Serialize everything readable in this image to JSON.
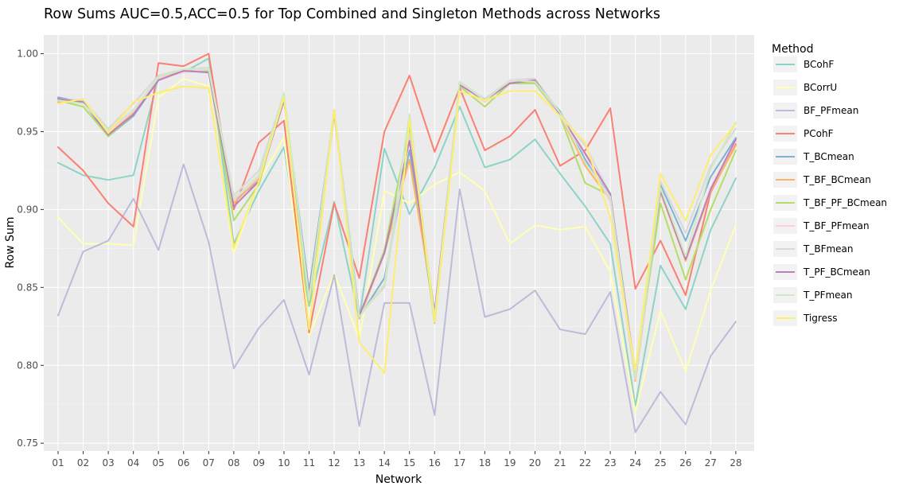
{
  "chart_data": {
    "type": "line",
    "title": "Row Sums AUC=0.5,ACC=0.5 for Top Combined and Singleton Methods across Networks",
    "xlabel": "Network",
    "ylabel": "Row Sum",
    "ylim": [
      0.745,
      1.012
    ],
    "yticks": [
      0.75,
      0.8,
      0.85,
      0.9,
      0.95,
      1.0
    ],
    "ytick_labels": [
      "0.75",
      "0.80",
      "0.85",
      "0.90",
      "0.95",
      "1.00"
    ],
    "grid": true,
    "legend_title": "Method",
    "legend_position": "right",
    "categories": [
      "01",
      "02",
      "03",
      "04",
      "05",
      "06",
      "07",
      "08",
      "09",
      "10",
      "11",
      "12",
      "13",
      "14",
      "15",
      "16",
      "17",
      "18",
      "19",
      "20",
      "21",
      "22",
      "23",
      "24",
      "25",
      "26",
      "27",
      "28"
    ],
    "series": [
      {
        "name": "BCohF",
        "color": "#8dd3c7",
        "values": [
          0.93,
          0.922,
          0.919,
          0.922,
          0.985,
          0.988,
          0.997,
          0.878,
          0.912,
          0.94,
          0.838,
          0.905,
          0.83,
          0.939,
          0.897,
          0.927,
          0.966,
          0.927,
          0.932,
          0.945,
          0.923,
          0.902,
          0.878,
          0.774,
          0.864,
          0.836,
          0.887,
          0.92
        ]
      },
      {
        "name": "BCorrU",
        "color": "#ffffb3",
        "values": [
          0.895,
          0.878,
          0.878,
          0.877,
          0.972,
          0.984,
          0.979,
          0.872,
          0.918,
          0.946,
          0.819,
          0.859,
          0.817,
          0.912,
          0.904,
          0.916,
          0.924,
          0.912,
          0.878,
          0.89,
          0.887,
          0.889,
          0.86,
          0.77,
          0.835,
          0.796,
          0.848,
          0.89
        ]
      },
      {
        "name": "BF_PFmean",
        "color": "#bebada",
        "values": [
          0.832,
          0.873,
          0.88,
          0.907,
          0.874,
          0.929,
          0.879,
          0.798,
          0.824,
          0.842,
          0.794,
          0.858,
          0.761,
          0.84,
          0.84,
          0.768,
          0.913,
          0.831,
          0.836,
          0.848,
          0.823,
          0.82,
          0.847,
          0.757,
          0.783,
          0.762,
          0.806,
          0.828
        ]
      },
      {
        "name": "PCohF",
        "color": "#fb8072",
        "values": [
          0.94,
          0.925,
          0.904,
          0.889,
          0.994,
          0.992,
          1.0,
          0.9,
          0.943,
          0.957,
          0.821,
          0.904,
          0.856,
          0.95,
          0.986,
          0.937,
          0.978,
          0.938,
          0.947,
          0.964,
          0.928,
          0.938,
          0.965,
          0.849,
          0.88,
          0.845,
          0.911,
          0.942
        ]
      },
      {
        "name": "T_BCmean",
        "color": "#80b1d3",
        "values": [
          0.972,
          0.969,
          0.947,
          0.96,
          0.983,
          0.989,
          0.988,
          0.906,
          0.918,
          0.972,
          0.848,
          0.962,
          0.831,
          0.856,
          0.938,
          0.83,
          0.981,
          0.971,
          0.981,
          0.981,
          0.963,
          0.932,
          0.908,
          0.793,
          0.916,
          0.88,
          0.921,
          0.946
        ]
      },
      {
        "name": "T_BF_BCmean",
        "color": "#fdb462",
        "values": [
          0.969,
          0.97,
          0.948,
          0.962,
          0.984,
          0.99,
          0.989,
          0.904,
          0.92,
          0.972,
          0.844,
          0.963,
          0.83,
          0.872,
          0.932,
          0.834,
          0.98,
          0.97,
          0.981,
          0.982,
          0.961,
          0.928,
          0.906,
          0.79,
          0.911,
          0.867,
          0.912,
          0.941
        ]
      },
      {
        "name": "T_BF_PF_BCmean",
        "color": "#b3de69",
        "values": [
          0.97,
          0.966,
          0.947,
          0.961,
          0.986,
          0.989,
          0.989,
          0.893,
          0.916,
          0.973,
          0.839,
          0.961,
          0.831,
          0.874,
          0.953,
          0.827,
          0.979,
          0.966,
          0.981,
          0.981,
          0.96,
          0.917,
          0.909,
          0.795,
          0.904,
          0.855,
          0.9,
          0.938
        ]
      },
      {
        "name": "T_BF_PFmean",
        "color": "#fccde5",
        "values": [
          0.97,
          0.968,
          0.95,
          0.963,
          0.984,
          0.988,
          0.99,
          0.906,
          0.921,
          0.973,
          0.842,
          0.963,
          0.832,
          0.852,
          0.946,
          0.833,
          0.981,
          0.969,
          0.982,
          0.983,
          0.96,
          0.935,
          0.905,
          0.791,
          0.913,
          0.868,
          0.914,
          0.944
        ]
      },
      {
        "name": "T_BFmean",
        "color": "#d9d9d9",
        "values": [
          0.971,
          0.97,
          0.952,
          0.968,
          0.986,
          0.99,
          0.991,
          0.909,
          0.925,
          0.974,
          0.843,
          0.964,
          0.833,
          0.85,
          0.948,
          0.834,
          0.982,
          0.971,
          0.983,
          0.984,
          0.962,
          0.941,
          0.91,
          0.796,
          0.918,
          0.885,
          0.928,
          0.952
        ]
      },
      {
        "name": "T_PF_BCmean",
        "color": "#bc80bd",
        "values": [
          0.971,
          0.969,
          0.948,
          0.961,
          0.983,
          0.989,
          0.988,
          0.902,
          0.918,
          0.97,
          0.845,
          0.962,
          0.832,
          0.872,
          0.944,
          0.834,
          0.98,
          0.97,
          0.981,
          0.983,
          0.961,
          0.936,
          0.91,
          0.794,
          0.912,
          0.868,
          0.913,
          0.945
        ]
      },
      {
        "name": "T_PFmean",
        "color": "#ccebc5",
        "values": [
          0.97,
          0.968,
          0.951,
          0.964,
          0.985,
          0.99,
          0.99,
          0.907,
          0.922,
          0.975,
          0.843,
          0.963,
          0.831,
          0.852,
          0.961,
          0.831,
          0.982,
          0.97,
          0.983,
          0.982,
          0.962,
          0.93,
          0.908,
          0.792,
          0.914,
          0.87,
          0.926,
          0.956
        ]
      },
      {
        "name": "Tigress",
        "color": "#ffed6f",
        "values": [
          0.968,
          0.971,
          0.949,
          0.969,
          0.975,
          0.979,
          0.978,
          0.875,
          0.918,
          0.972,
          0.823,
          0.964,
          0.815,
          0.795,
          0.958,
          0.828,
          0.976,
          0.97,
          0.976,
          0.976,
          0.96,
          0.943,
          0.895,
          0.797,
          0.923,
          0.893,
          0.935,
          0.955
        ]
      }
    ]
  }
}
